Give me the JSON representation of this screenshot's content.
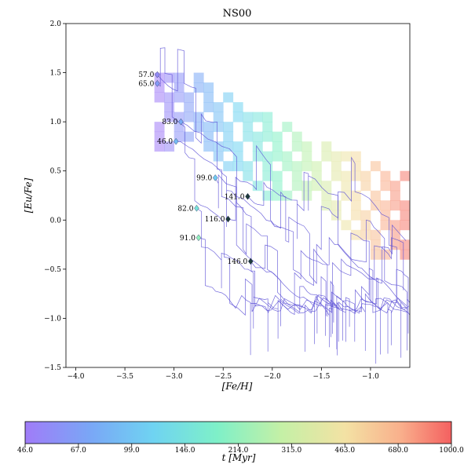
{
  "chart_data": {
    "type": "scatter",
    "title": "NS00",
    "xlabel": "[Fe/H]",
    "ylabel": "[Eu/Fe]",
    "xlim": [
      -4.1,
      -0.6
    ],
    "ylim": [
      -1.5,
      2.0
    ],
    "xticks": [
      -4.0,
      -3.5,
      -3.0,
      -2.5,
      -2.0,
      -1.5,
      -1.0
    ],
    "yticks": [
      -1.5,
      -1.0,
      -0.5,
      0.0,
      0.5,
      1.0,
      1.5,
      2.0
    ],
    "xtick_labels": [
      "−4.0",
      "−3.5",
      "−3.0",
      "−2.5",
      "−2.0",
      "−1.5",
      "−1.0"
    ],
    "ytick_labels": [
      "−1.5",
      "−1.0",
      "−0.5",
      "0.0",
      "0.5",
      "1.0",
      "1.5",
      "2.0"
    ],
    "line_color": "#5a4fd6",
    "annotations": [
      {
        "label": "57.0",
        "x": -3.17,
        "y": 1.48
      },
      {
        "label": "65.0",
        "x": -3.17,
        "y": 1.39
      },
      {
        "label": "83.0",
        "x": -2.93,
        "y": 1.0
      },
      {
        "label": "46.0",
        "x": -2.98,
        "y": 0.8
      },
      {
        "label": "99.0",
        "x": -2.58,
        "y": 0.43
      },
      {
        "label": "141.0",
        "x": -2.25,
        "y": 0.24
      },
      {
        "label": "82.0",
        "x": -2.77,
        "y": 0.12
      },
      {
        "label": "116.0",
        "x": -2.45,
        "y": 0.01
      },
      {
        "label": "91.0",
        "x": -2.75,
        "y": -0.18
      },
      {
        "label": "146.0",
        "x": -2.22,
        "y": -0.42
      }
    ],
    "colorbar": {
      "label": "t [Myr]",
      "ticks": [
        "46.0",
        "67.0",
        "99.0",
        "146.0",
        "214.0",
        "315.0",
        "463.0",
        "680.0",
        "1000.0"
      ],
      "cmap": "rainbow"
    },
    "grid": false,
    "legend": "none"
  }
}
